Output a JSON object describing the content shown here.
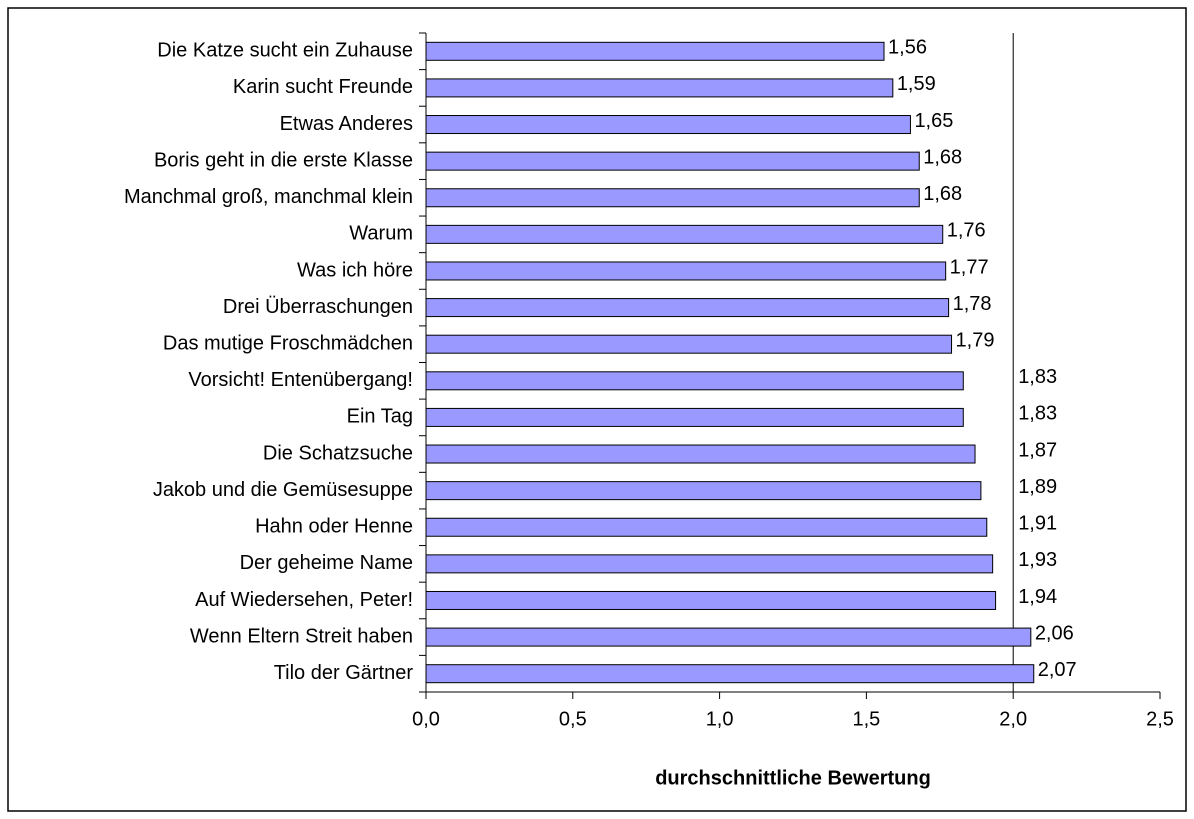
{
  "chart_data": {
    "type": "bar",
    "orientation": "horizontal",
    "x_label": "durchschnittliche Bewertung",
    "categories": [
      "Die Katze sucht ein Zuhause",
      "Karin sucht Freunde",
      "Etwas Anderes",
      "Boris geht in die erste Klasse",
      "Manchmal groß, manchmal klein",
      "Warum",
      "Was ich höre",
      "Drei Überraschungen",
      "Das mutige Froschmädchen",
      "Vorsicht! Entenübergang!",
      "Ein Tag",
      "Die Schatzsuche",
      "Jakob und die Gemüsesuppe",
      "Hahn oder Henne",
      "Der geheime Name",
      "Auf Wiedersehen, Peter!",
      "Wenn Eltern Streit haben",
      "Tilo der Gärtner"
    ],
    "values": [
      1.56,
      1.59,
      1.65,
      1.68,
      1.68,
      1.76,
      1.77,
      1.78,
      1.79,
      1.83,
      1.83,
      1.87,
      1.89,
      1.91,
      1.93,
      1.94,
      2.06,
      2.07
    ],
    "value_labels": [
      "1,56",
      "1,59",
      "1,65",
      "1,68",
      "1,68",
      "1,76",
      "1,77",
      "1,78",
      "1,79",
      "1,83",
      "1,83",
      "1,87",
      "1,89",
      "1,91",
      "1,93",
      "1,94",
      "2,06",
      "2,07"
    ],
    "color": "#9999ff",
    "xlim": [
      0,
      2.5
    ],
    "xticks": [
      {
        "value": 0,
        "label": "0,0"
      },
      {
        "value": 0.5,
        "label": "0,5"
      },
      {
        "value": 1,
        "label": "1,0"
      },
      {
        "value": 1.5,
        "label": "1,5"
      },
      {
        "value": 2,
        "label": "2,0"
      },
      {
        "value": 2.5,
        "label": "2,5"
      }
    ],
    "reference_line": 2
  }
}
